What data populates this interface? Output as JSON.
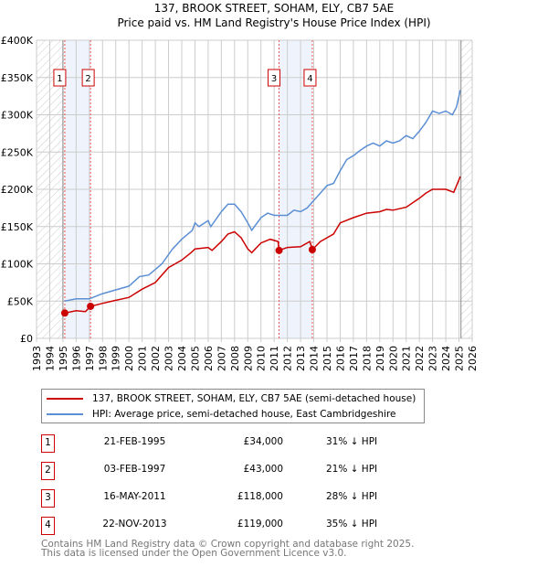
{
  "chart_data": {
    "type": "line",
    "title": "137, BROOK STREET, SOHAM, ELY, CB7 5AE",
    "subtitle": "Price paid vs. HM Land Registry's House Price Index (HPI)",
    "xlim": [
      1993,
      2026
    ],
    "ylim": [
      0,
      400000
    ],
    "x_ticks": [
      "1993",
      "1994",
      "1995",
      "1996",
      "1997",
      "1998",
      "1999",
      "2000",
      "2001",
      "2002",
      "2003",
      "2004",
      "2005",
      "2006",
      "2007",
      "2008",
      "2009",
      "2010",
      "2011",
      "2012",
      "2013",
      "2014",
      "2015",
      "2016",
      "2017",
      "2018",
      "2019",
      "2020",
      "2021",
      "2022",
      "2023",
      "2024",
      "2025",
      "2026"
    ],
    "y_ticks": [
      {
        "v": 0,
        "label": "£0"
      },
      {
        "v": 50000,
        "label": "£50K"
      },
      {
        "v": 100000,
        "label": "£100K"
      },
      {
        "v": 150000,
        "label": "£150K"
      },
      {
        "v": 200000,
        "label": "£200K"
      },
      {
        "v": 250000,
        "label": "£250K"
      },
      {
        "v": 300000,
        "label": "£300K"
      },
      {
        "v": 350000,
        "label": "£350K"
      },
      {
        "v": 400000,
        "label": "£400K"
      }
    ],
    "grid": true,
    "hatched_ranges": [
      [
        1993,
        1995.1
      ],
      [
        2025.15,
        2026
      ]
    ],
    "shaded_ranges": [
      [
        1995.14,
        1997.09
      ],
      [
        2011.37,
        2013.89
      ]
    ],
    "series": [
      {
        "name": "137, BROOK STREET, SOHAM, ELY, CB7 5AE (semi-detached house)",
        "color": "#cc0000",
        "x": [
          1995.14,
          1996,
          1996.7,
          1997.09,
          1998,
          1999,
          2000,
          2001,
          2002,
          2003,
          2004,
          2004.7,
          2005,
          2006,
          2006.3,
          2007,
          2007.5,
          2008,
          2008.5,
          2009,
          2009.3,
          2010,
          2010.7,
          2011.3,
          2011.37,
          2012,
          2013,
          2013.7,
          2013.89,
          2014.5,
          2015,
          2015.5,
          2016,
          2017,
          2018,
          2019,
          2019.5,
          2020,
          2021,
          2022,
          2022.5,
          2023,
          2024,
          2024.6,
          2025.1
        ],
        "y": [
          34000,
          37000,
          36000,
          43000,
          47000,
          51000,
          55000,
          66000,
          75000,
          95000,
          105000,
          115000,
          120000,
          122000,
          118000,
          130000,
          140000,
          143000,
          135000,
          120000,
          115000,
          128000,
          133000,
          130000,
          118000,
          122000,
          123000,
          130000,
          119000,
          130000,
          135000,
          140000,
          155000,
          162000,
          168000,
          170000,
          173000,
          172000,
          176000,
          188000,
          195000,
          200000,
          200000,
          196000,
          217000
        ]
      },
      {
        "name": "HPI: Average price, semi-detached house, East Cambridgeshire",
        "color": "#5b8fd4",
        "x": [
          1995.1,
          1996,
          1997,
          1998,
          1999,
          2000,
          2000.8,
          2001.5,
          2002.5,
          2003.3,
          2004,
          2004.8,
          2005,
          2005.3,
          2006,
          2006.2,
          2007,
          2007.5,
          2008,
          2008.5,
          2009,
          2009.3,
          2010,
          2010.5,
          2011,
          2011.5,
          2012,
          2012.5,
          2013,
          2013.5,
          2014,
          2014.5,
          2015,
          2015.5,
          2016,
          2016.5,
          2017,
          2017.5,
          2018,
          2018.5,
          2019,
          2019.5,
          2020,
          2020.5,
          2021,
          2021.5,
          2022,
          2022.5,
          2023,
          2023.5,
          2024,
          2024.5,
          2024.8,
          2025.1
        ],
        "y": [
          50000,
          53000,
          53000,
          60000,
          65000,
          70000,
          83000,
          85000,
          100000,
          120000,
          133000,
          145000,
          155000,
          150000,
          158000,
          150000,
          170000,
          180000,
          180000,
          170000,
          155000,
          145000,
          162000,
          168000,
          165000,
          165000,
          165000,
          172000,
          170000,
          175000,
          185000,
          195000,
          205000,
          208000,
          225000,
          240000,
          245000,
          252000,
          258000,
          262000,
          258000,
          265000,
          262000,
          265000,
          272000,
          268000,
          278000,
          290000,
          305000,
          302000,
          305000,
          300000,
          310000,
          333000
        ]
      }
    ],
    "sales": [
      {
        "label": "1",
        "x": 1995.14,
        "y": 34000
      },
      {
        "label": "2",
        "x": 1997.09,
        "y": 43000
      },
      {
        "label": "3",
        "x": 2011.37,
        "y": 118000
      },
      {
        "label": "4",
        "x": 2013.89,
        "y": 119000
      }
    ]
  },
  "table": [
    {
      "num": "1",
      "date": "21-FEB-1995",
      "price": "£34,000",
      "hpi": "31% ↓ HPI"
    },
    {
      "num": "2",
      "date": "03-FEB-1997",
      "price": "£43,000",
      "hpi": "21% ↓ HPI"
    },
    {
      "num": "3",
      "date": "16-MAY-2011",
      "price": "£118,000",
      "hpi": "28% ↓ HPI"
    },
    {
      "num": "4",
      "date": "22-NOV-2013",
      "price": "£119,000",
      "hpi": "35% ↓ HPI"
    }
  ],
  "footer": {
    "line1": "Contains HM Land Registry data © Crown copyright and database right 2025.",
    "line2": "This data is licensed under the Open Government Licence v3.0."
  }
}
